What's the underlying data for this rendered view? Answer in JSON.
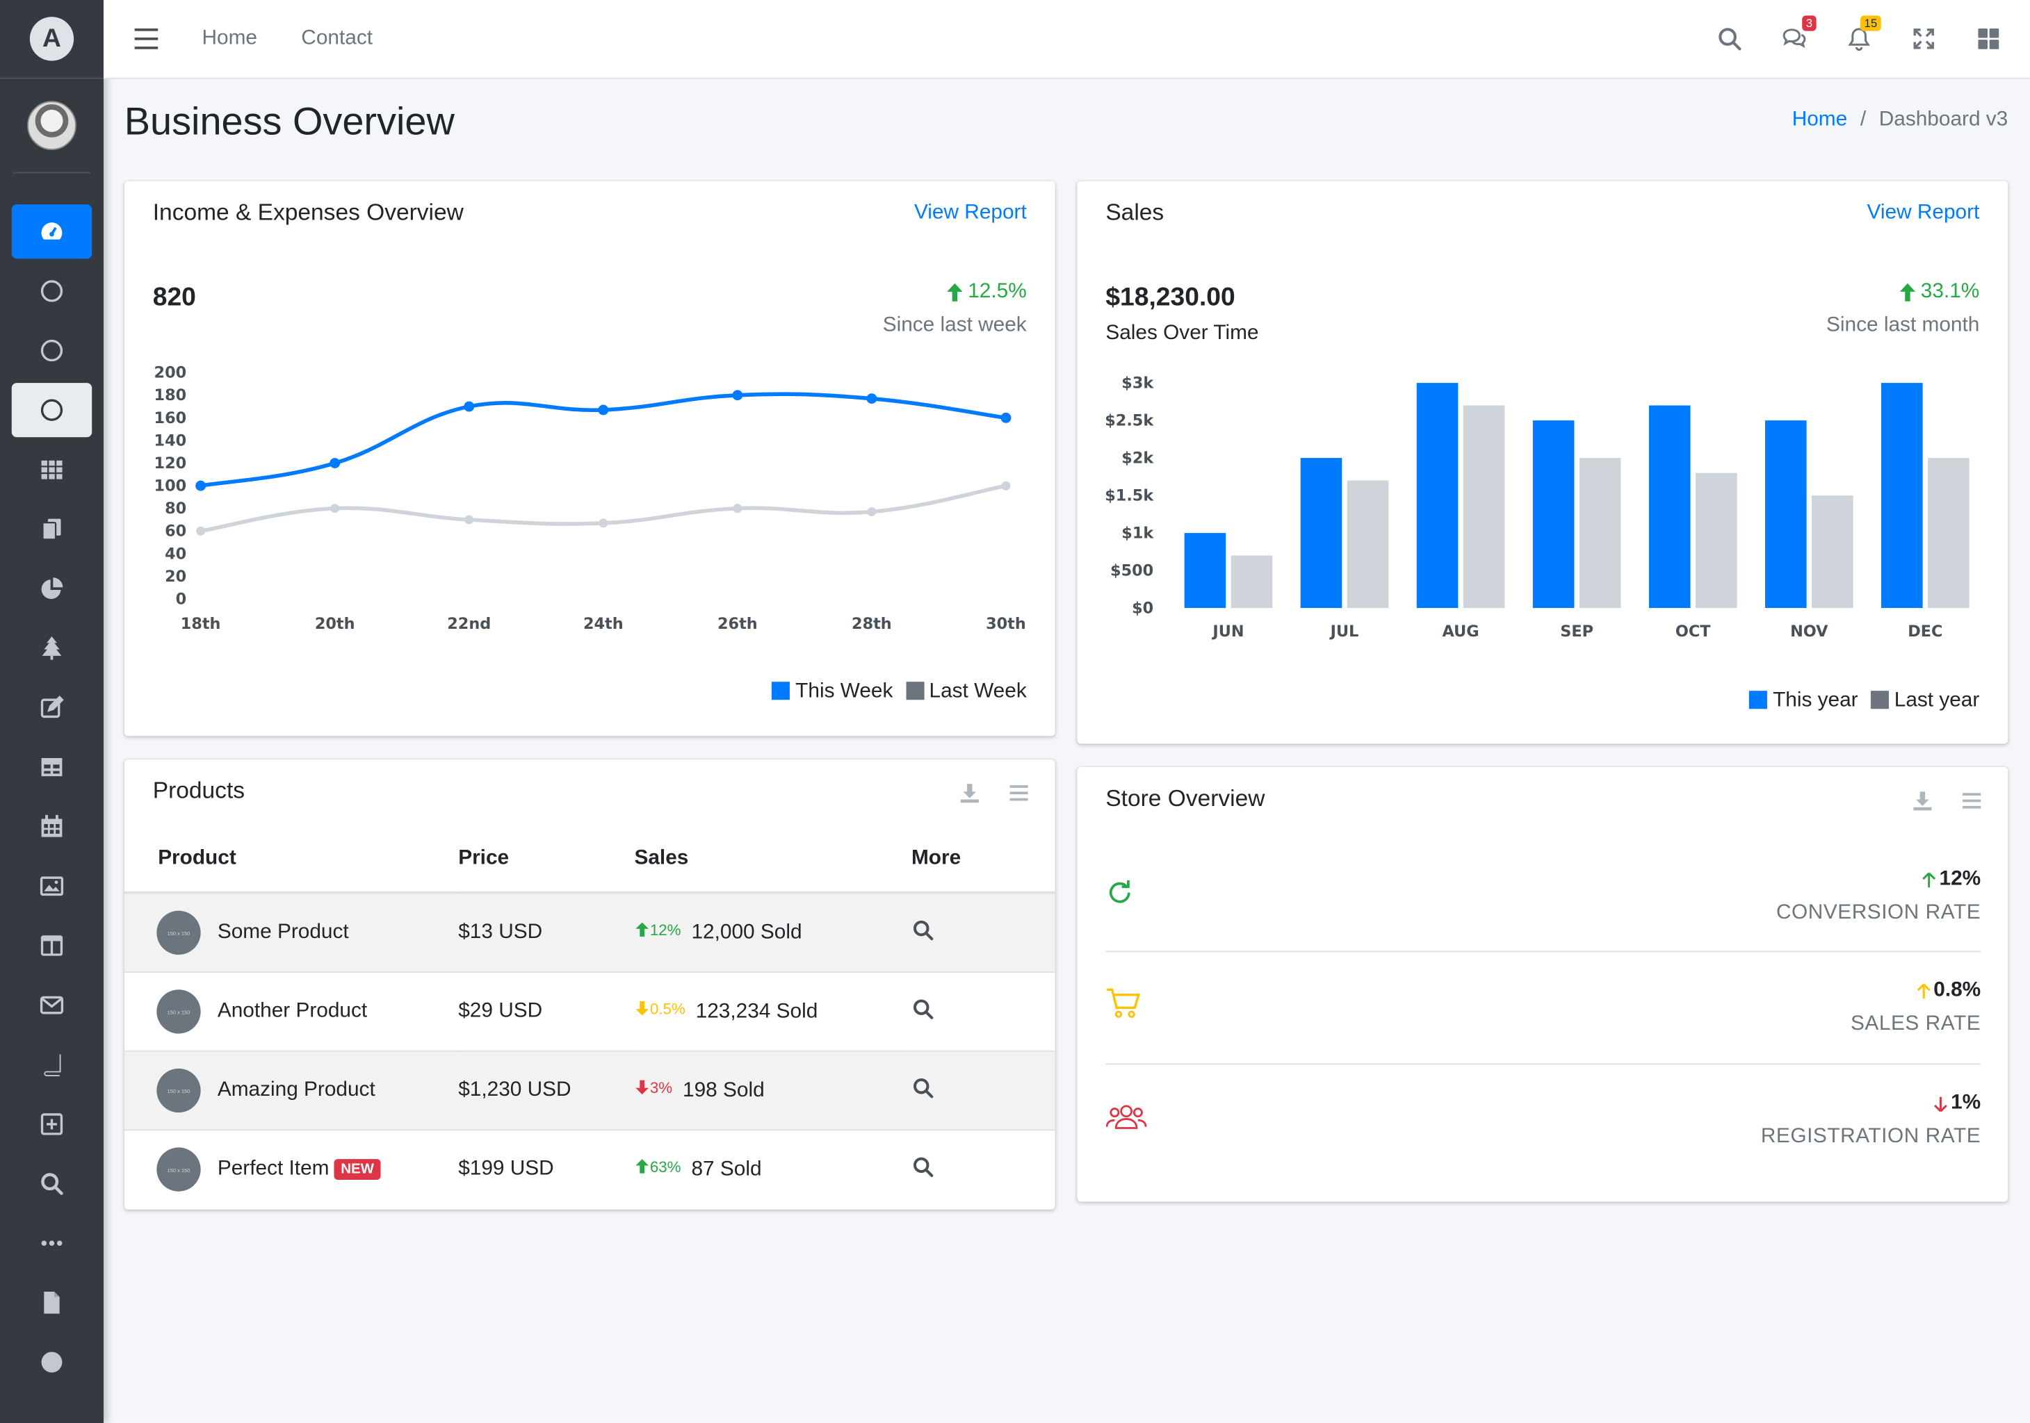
{
  "topbar": {
    "links": [
      "Home",
      "Contact"
    ],
    "messages_count": "3",
    "notifications_count": "15"
  },
  "page": {
    "title": "Business Overview",
    "breadcrumb": [
      "Home",
      "Dashboard v3"
    ]
  },
  "income_card": {
    "title": "Income & Expenses Overview",
    "view_report": "View Report",
    "value": "820",
    "change": "12.5%",
    "since": "Since last week",
    "legend": [
      "This Week",
      "Last Week"
    ]
  },
  "sales_card": {
    "title": "Sales",
    "view_report": "View Report",
    "value": "$18,230.00",
    "subtitle": "Sales Over Time",
    "change": "33.1%",
    "since": "Since last month",
    "legend": [
      "This year",
      "Last year"
    ]
  },
  "products_card": {
    "title": "Products",
    "columns": [
      "Product",
      "Price",
      "Sales",
      "More"
    ],
    "rows": [
      {
        "name": "Some Product",
        "badge": "",
        "price": "$13 USD",
        "trend": "12%",
        "sold": "12,000 Sold"
      },
      {
        "name": "Another Product",
        "badge": "",
        "price": "$29 USD",
        "trend": "0.5%",
        "sold": "123,234 Sold"
      },
      {
        "name": "Amazing Product",
        "badge": "",
        "price": "$1,230 USD",
        "trend": "3%",
        "sold": "198 Sold"
      },
      {
        "name": "Perfect Item",
        "badge": "NEW",
        "price": "$199 USD",
        "trend": "63%",
        "sold": "87 Sold"
      }
    ],
    "thumb_text": "150 x 150"
  },
  "store_card": {
    "title": "Store Overview",
    "rows": [
      {
        "value": "12%",
        "label": "CONVERSION RATE"
      },
      {
        "value": "0.8%",
        "label": "SALES RATE"
      },
      {
        "value": "1%",
        "label": "REGISTRATION RATE"
      }
    ]
  },
  "colors": {
    "primary": "#007bff",
    "success": "#28a745",
    "warning": "#ffc107",
    "danger": "#dc3545",
    "sidebar": "#343a40",
    "last_series": "#ced4da"
  },
  "chart_data": [
    {
      "type": "line",
      "x": [
        "18th",
        "20th",
        "22nd",
        "24th",
        "26th",
        "28th",
        "30th"
      ],
      "series": [
        {
          "name": "This Week",
          "values": [
            100,
            120,
            170,
            167,
            180,
            177,
            160
          ]
        },
        {
          "name": "Last Week",
          "values": [
            60,
            80,
            70,
            67,
            80,
            77,
            100
          ]
        }
      ],
      "ylim": [
        0,
        200
      ],
      "yticks": [
        0,
        20,
        40,
        60,
        80,
        100,
        120,
        140,
        160,
        180,
        200
      ],
      "grid": false
    },
    {
      "type": "bar",
      "categories": [
        "JUN",
        "JUL",
        "AUG",
        "SEP",
        "OCT",
        "NOV",
        "DEC"
      ],
      "series": [
        {
          "name": "This year",
          "values": [
            1000,
            2000,
            3000,
            2500,
            2700,
            2500,
            3000
          ]
        },
        {
          "name": "Last year",
          "values": [
            700,
            1700,
            2700,
            2000,
            1800,
            1500,
            2000
          ]
        }
      ],
      "ylim": [
        0,
        3000
      ],
      "yticks": [
        "$0",
        "$500",
        "$1k",
        "$1.5k",
        "$2k",
        "$2.5k",
        "$3k"
      ],
      "grid": false
    }
  ]
}
